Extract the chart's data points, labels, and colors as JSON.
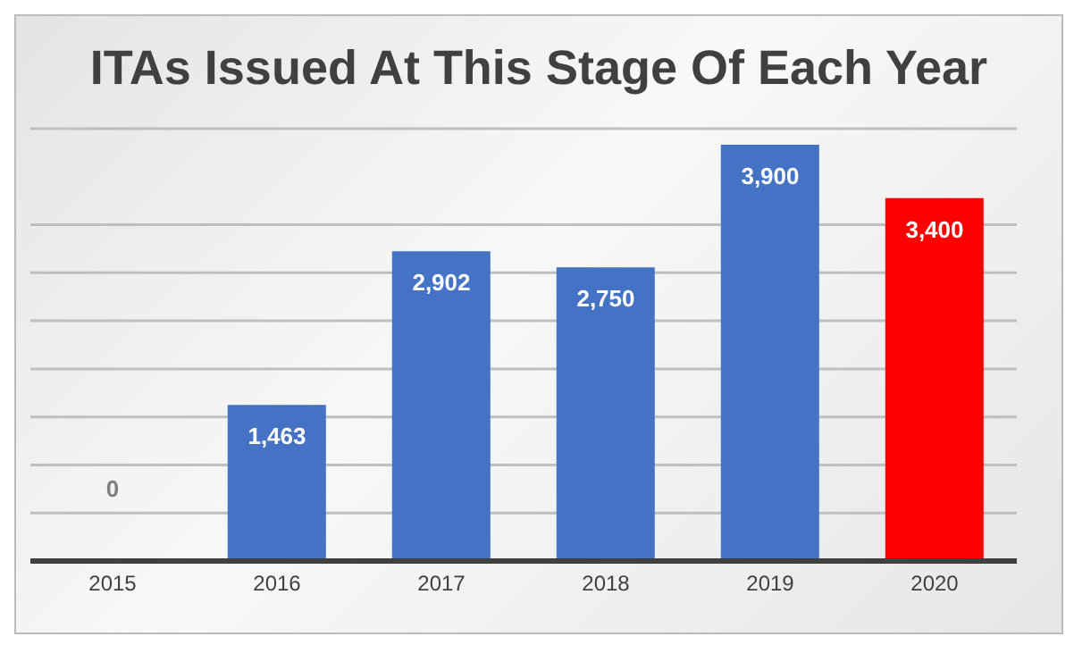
{
  "chart_data": {
    "type": "bar",
    "title": "ITAs Issued At This Stage Of Each Year",
    "categories": [
      "2015",
      "2016",
      "2017",
      "2018",
      "2019",
      "2020"
    ],
    "values": [
      0,
      1463,
      2902,
      2750,
      3900,
      3400
    ],
    "value_labels": [
      "0",
      "1,463",
      "2,902",
      "2,750",
      "3,900",
      "3,400"
    ],
    "colors": [
      "#4472c4",
      "#4472c4",
      "#4472c4",
      "#4472c4",
      "#4472c4",
      "#ff0000"
    ],
    "tick_labels": "x",
    "grid": "y",
    "legend": false
  }
}
